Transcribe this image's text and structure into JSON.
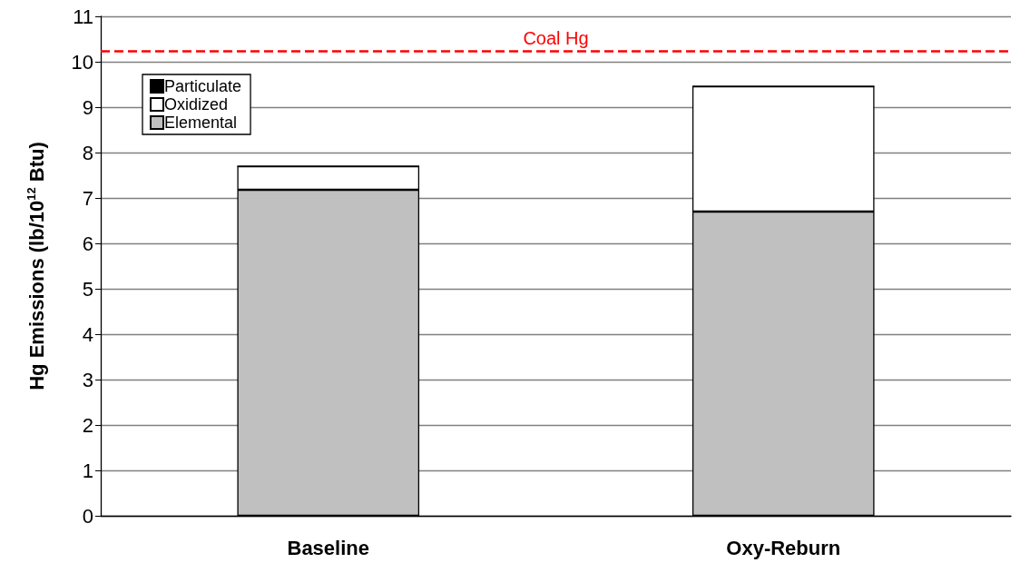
{
  "chart_data": {
    "type": "bar",
    "stacked": true,
    "ylabel": "Hg Emissions (lb/10$^{12}$ Btu)",
    "categories": [
      "Baseline",
      "Oxy-Reburn"
    ],
    "series": [
      {
        "name": "Elemental",
        "color": "#c0c0c0",
        "values": [
          7.18,
          6.7
        ]
      },
      {
        "name": "Oxidized",
        "color": "#ffffff",
        "values": [
          0.52,
          2.76
        ]
      },
      {
        "name": "Particulate",
        "color": "#000000",
        "values": [
          0,
          0
        ]
      }
    ],
    "ylim": [
      0,
      11
    ],
    "yticks": [
      0,
      1,
      2,
      3,
      4,
      5,
      6,
      7,
      8,
      9,
      10,
      11
    ],
    "grid": "y",
    "legend": "top left",
    "ref_lines": [
      {
        "axis": "y",
        "value": 10.24,
        "label": "Coal Hg",
        "color": "#ff0000",
        "line_style": "dashed"
      }
    ]
  }
}
